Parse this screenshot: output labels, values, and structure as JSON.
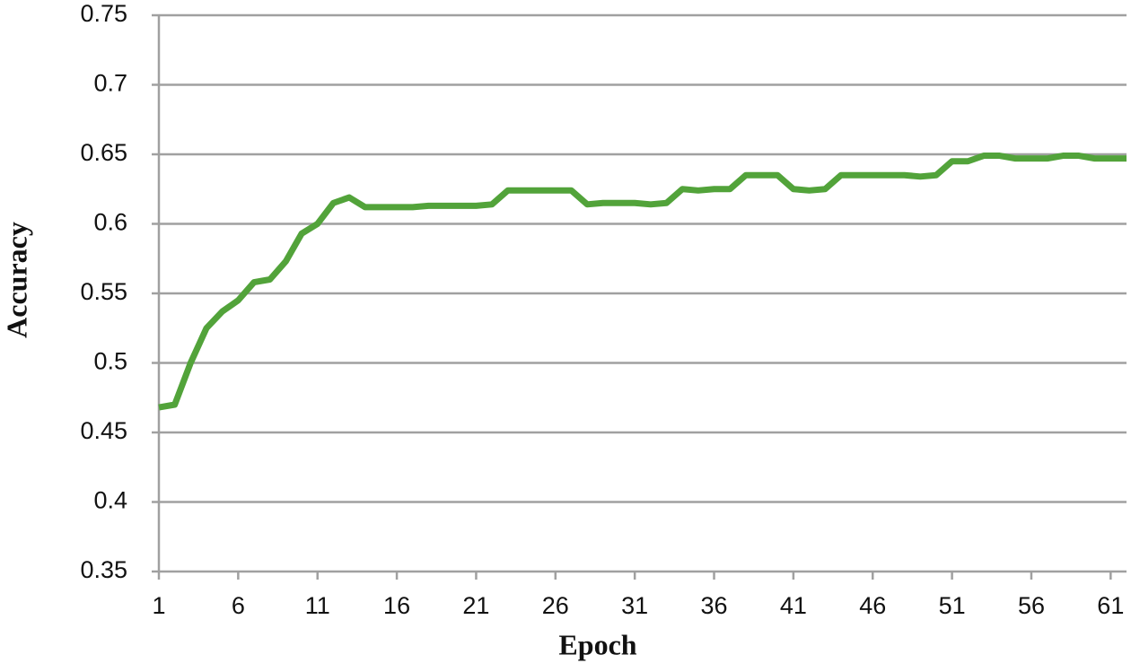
{
  "chart_data": {
    "type": "line",
    "x_label": "Epoch",
    "y_label": "Accuracy",
    "x": [
      1,
      2,
      3,
      4,
      5,
      6,
      7,
      8,
      9,
      10,
      11,
      12,
      13,
      14,
      15,
      16,
      17,
      18,
      19,
      20,
      21,
      22,
      23,
      24,
      25,
      26,
      27,
      28,
      29,
      30,
      31,
      32,
      33,
      34,
      35,
      36,
      37,
      38,
      39,
      40,
      41,
      42,
      43,
      44,
      45,
      46,
      47,
      48,
      49,
      50,
      51,
      52,
      53,
      54,
      55,
      56,
      57,
      58,
      59,
      60,
      61,
      62
    ],
    "series": [
      {
        "color": "#52a33a",
        "values": [
          0.468,
          0.47,
          0.5,
          0.525,
          0.537,
          0.545,
          0.558,
          0.56,
          0.573,
          0.593,
          0.6,
          0.615,
          0.619,
          0.612,
          0.612,
          0.612,
          0.612,
          0.613,
          0.613,
          0.613,
          0.613,
          0.614,
          0.624,
          0.624,
          0.624,
          0.624,
          0.624,
          0.614,
          0.615,
          0.615,
          0.615,
          0.614,
          0.615,
          0.625,
          0.624,
          0.625,
          0.625,
          0.635,
          0.635,
          0.635,
          0.625,
          0.624,
          0.625,
          0.635,
          0.635,
          0.635,
          0.635,
          0.635,
          0.634,
          0.635,
          0.645,
          0.645,
          0.649,
          0.649,
          0.647,
          0.647,
          0.647,
          0.649,
          0.649,
          0.647,
          0.647,
          0.647
        ]
      }
    ],
    "xlim": [
      1,
      62
    ],
    "xticks": [
      1,
      6,
      11,
      16,
      21,
      26,
      31,
      36,
      41,
      46,
      51,
      56,
      61
    ],
    "ylim": [
      0.35,
      0.75
    ],
    "yticks": [
      0.35,
      0.4,
      0.45,
      0.5,
      0.55,
      0.6,
      0.65,
      0.7,
      0.75
    ],
    "grid": true
  }
}
